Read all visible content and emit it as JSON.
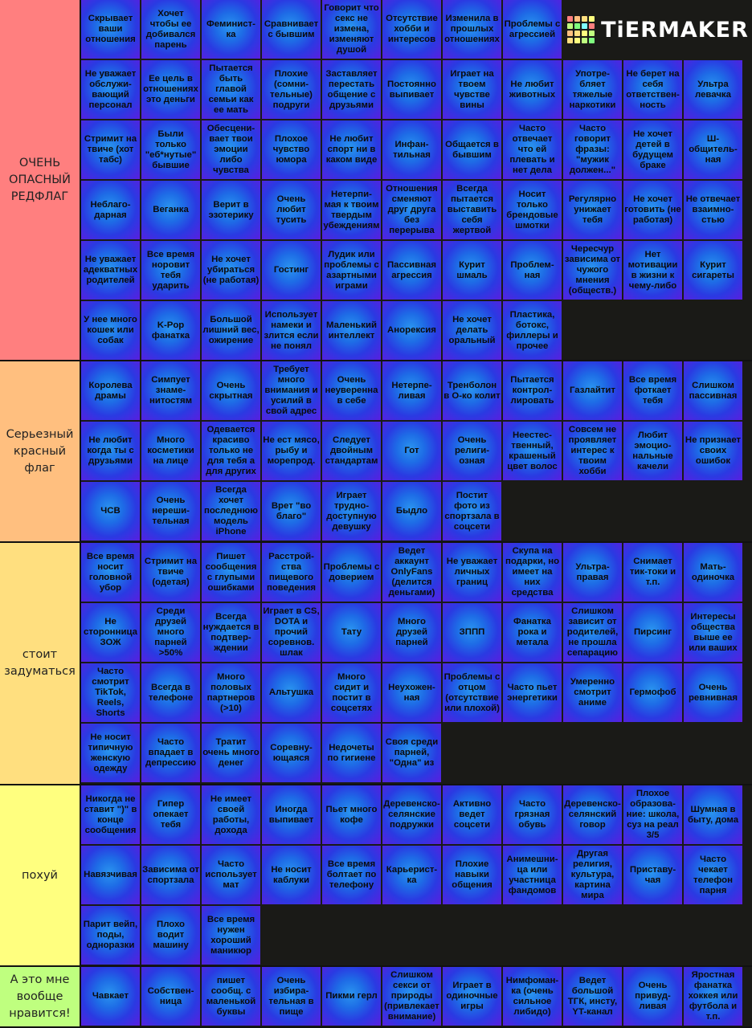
{
  "logo": {
    "text": "TiERMAKER",
    "grid_colors": [
      "#ff7f7f",
      "#ffbf7f",
      "#ffdf7f",
      "#ffff7f",
      "#bfff7f",
      "#7fff7f",
      "#7fffff",
      "#ff7f7f",
      "#ffbf7f",
      "#ffdf7f",
      "#ffff7f",
      "#bfff7f",
      "#ffdf7f",
      "#ffff7f",
      "#bfff7f",
      "#7fff7f"
    ]
  },
  "tiers": [
    {
      "label": "ОЧЕНЬ ОПАСНЫЙ РЕДФЛАГ",
      "color": "#ff7f7f",
      "items": [
        "Скрывает ваши отношения",
        "Хочет чтобы ее добивался парень",
        "Феминист-ка",
        "Сравнивает с бывшим",
        "Говорит что секс не измена, изменяют душой",
        "Отсутствие хобби и интересов",
        "Изменила в прошлых отношениях",
        "Проблемы с агрессией",
        "Не уважает обслужи-вающий персонал",
        "Ее цель в отношениях это деньги",
        "Пытается быть главой семьи как ее мать",
        "Плохие (сомни-тельные) подруги",
        "Заставляет перестать общение с друзьями",
        "Постоянно выпивает",
        "Играет на твоем чувстве вины",
        "Не любит животных",
        "Употре-бляет тяжелые наркотики",
        "Не берет на себя ответствен-ность",
        "Ультра левачка",
        "Стримит на твиче (хот табс)",
        "Были только \"еб*нутые\" бывшие",
        "Обесцени-вает твои эмоции либо чувства",
        "Плохое чувство юмора",
        "Не любит спорт ни в каком виде",
        "Инфан-тильная",
        "Общается в бывшим",
        "Часто отвечает что ей плевать и нет дела",
        "Часто говорит фразы: \"мужик должен...\"",
        "Не хочет детей в будущем браке",
        "Ш-общитель-ная",
        "Неблаго-дарная",
        "Веганка",
        "Верит в эзотерику",
        "Очень любит тусить",
        "Нетерпи-мая к твоим твердым убеждениям",
        "Отношения сменяют друг друга без перерыва",
        "Всегда пытается выставить себя жертвой",
        "Носит только брендовые шмотки",
        "Регулярно унижает тебя",
        "Не хочет готовить (не работая)",
        "Не отвечает взаимно-стью",
        "Не уважает адекватных родителей",
        "Все время норовит тебя ударить",
        "Не хочет убираться (не работая)",
        "Гостинг",
        "Лудик или проблемы с азартными играми",
        "Пассивная агрессия",
        "Курит шмаль",
        "Проблем-ная",
        "Чересчур зависима от чужого мнения (обществ.)",
        "Нет мотивации в жизни к чему-либо",
        "Курит сигареты",
        "У нее много кошек или собак",
        "K-Pop фанатка",
        "Большой лишний вес, ожирение",
        "Использует намеки и злится если не понял",
        "Маленький интеллект",
        "Анорексия",
        "Не хочет делать оральный",
        "Пластика, ботокс, филлеры и прочее"
      ]
    },
    {
      "label": "Серьезный красный флаг",
      "color": "#ffbf7f",
      "items": [
        "Королева драмы",
        "Симпует знаме-нитостям",
        "Очень скрытная",
        "Требует много внимания и усилий в свой адрес",
        "Очень неуверенна в себе",
        "Нетерпе-ливая",
        "Тренболон в О-ко колит",
        "Пытается контрол-лировать",
        "Газлайтит",
        "Все время фоткает тебя",
        "Слишком пассивная",
        "Не любит когда ты с друзьями",
        "Много косметики на лице",
        "Одевается красиво только не для тебя а для других",
        "Не ест мясо, рыбу и морепрод.",
        "Следует двойным стандартам",
        "Гот",
        "Очень религи-озная",
        "Неестес-твенный, крашеный цвет волос",
        "Совсем не проявляет интерес к твоим хобби",
        "Любит эмоцио-нальные качели",
        "Не признает своих ошибок",
        "ЧСВ",
        "Очень нереши-тельная",
        "Всегда хочет последнюю модель iPhone",
        "Врет \"во благо\"",
        "Играет трудно-доступную девушку",
        "Быдло",
        "Постит фото из спортзала в соцсети"
      ]
    },
    {
      "label": "стоит задуматься",
      "color": "#ffdf7f",
      "items": [
        "Все время носит головной убор",
        "Стримит на твиче (одетая)",
        "Пишет сообщения с глупыми ошибками",
        "Расстрой-ства пищевого поведения",
        "Проблемы с доверием",
        "Ведет аккаунт OnlyFans (делится деньгами)",
        "Не уважает личных границ",
        "Скупа на подарки, но имеет на них средства",
        "Ультра-правая",
        "Снимает тик-токи и т.п.",
        "Мать-одиночка",
        "Не сторонница ЗОЖ",
        "Среди друзей много парней >50%",
        "Всегда нуждается в подтвер-ждении",
        "Играет в CS, DOTA и прочий соревнов. шлак",
        "Тату",
        "Много друзей парней",
        "ЗППП",
        "Фанатка рока и метала",
        "Слишком зависит от родителей, не прошла сепарацию",
        "Пирсинг",
        "Интересы общества выше ее или ваших",
        "Часто смотрит TikTok, Reels, Shorts",
        "Всегда в телефоне",
        "Много половых партнеров (>10)",
        "Альтушка",
        "Много сидит и постит в соцсетях",
        "Неухожен-ная",
        "Проблемы с отцом (отсутствие или плохой)",
        "Часто пьет энергетики",
        "Умеренно смотрит аниме",
        "Гермофоб",
        "Очень ревнивная",
        "Не носит типичную женскую одежду",
        "Часто впадает в депрессию",
        "Тратит очень много денег",
        "Соревну-ющаяся",
        "Недочеты по гигиене",
        "Своя среди парней, \"Одна\" из"
      ]
    },
    {
      "label": "похуй",
      "color": "#ffff7f",
      "items": [
        "Никогда не ставит \")\" в конце сообщения",
        "Гипер опекает тебя",
        "Не имеет своей работы, дохода",
        "Иногда выпивает",
        "Пьет много кофе",
        "Деревенско-селянские подружки",
        "Активно ведет соцсети",
        "Часто грязная обувь",
        "Деревенско-селянский говор",
        "Плохое образова-ние: школа, суз на реал 3/5",
        "Шумная в быту, дома",
        "Навязчивая",
        "Зависима от спортзала",
        "Часто использует мат",
        "Не носит каблуки",
        "Все время болтает по телефону",
        "Карьерист-ка",
        "Плохие навыки общения",
        "Анимешни-ца или участница фандомов",
        "Другая религия, культура, картина мира",
        "Приставу-чая",
        "Часто чекает телефон парня",
        "Парит вейп, поды, одноразки",
        "Плохо водит машину",
        "Все время нужен хороший маникюр"
      ]
    },
    {
      "label": "А это мне вообще нравится!",
      "color": "#bfff7f",
      "items": [
        "Чавкает",
        "Собствен-ница",
        "пишет сообщ. с маленькой буквы",
        "Очень избира-тельная в пище",
        "Пикми герл",
        "Слишком секси от природы (привлекает внимание)",
        "Играет в одиночные игры",
        "Нимфоман-ка (очень сильное либидо)",
        "Ведет большой ТГК, инсту, YT-канал",
        "Очень привуд-ливая",
        "Яростная фанатка хоккея или футбола и т.п."
      ]
    }
  ]
}
